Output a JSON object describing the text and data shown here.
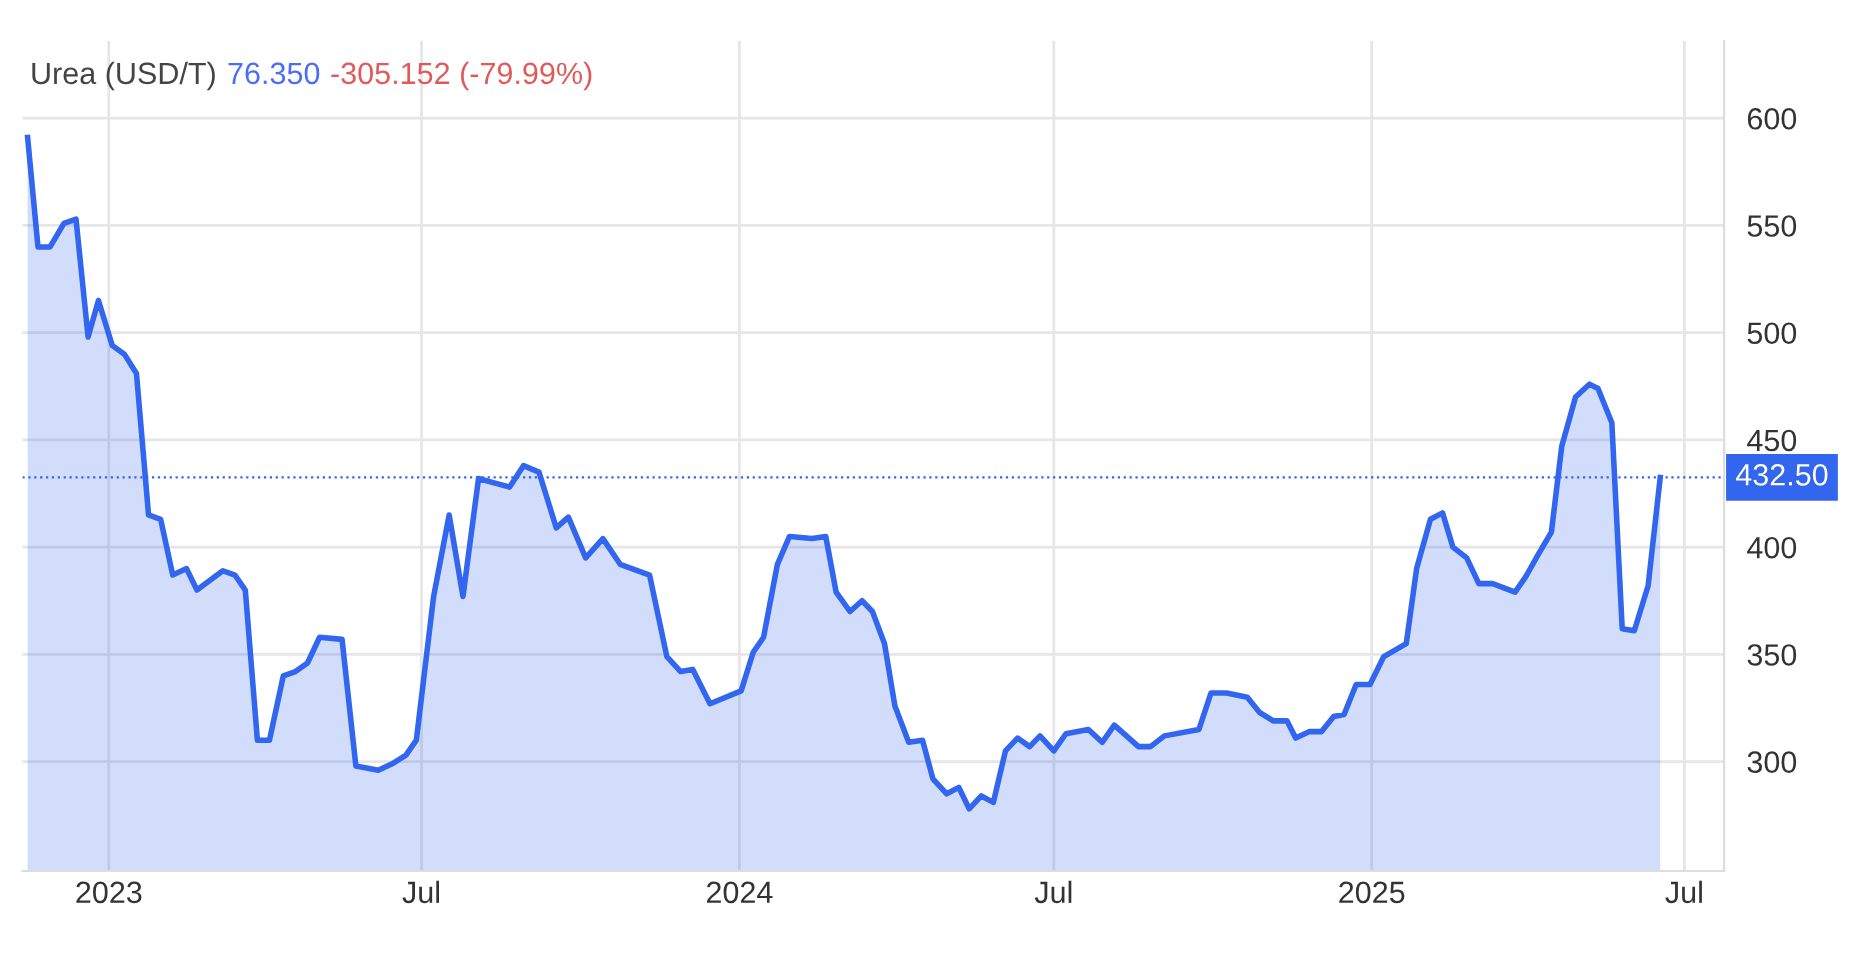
{
  "chart_data": {
    "type": "area",
    "title": "Urea (USD/T)",
    "annotations": [
      "76.350",
      "-305.152 (-79.99%)"
    ],
    "x": [
      "2022-11-15",
      "2022-11-21",
      "2022-11-28",
      "2022-12-06",
      "2022-12-13",
      "2022-12-20",
      "2022-12-26",
      "2023-01-03",
      "2023-01-10",
      "2023-01-17",
      "2023-01-24",
      "2023-01-31",
      "2023-02-07",
      "2023-02-15",
      "2023-02-21",
      "2023-03-08",
      "2023-03-15",
      "2023-03-21",
      "2023-03-28",
      "2023-04-04",
      "2023-04-12",
      "2023-04-19",
      "2023-04-26",
      "2023-05-03",
      "2023-05-16",
      "2023-05-24",
      "2023-06-06",
      "2023-06-14",
      "2023-06-22",
      "2023-06-28",
      "2023-07-08",
      "2023-07-17",
      "2023-07-25",
      "2023-08-03",
      "2023-08-12",
      "2023-08-21",
      "2023-08-29",
      "2023-09-07",
      "2023-09-17",
      "2023-09-24",
      "2023-10-04",
      "2023-10-14",
      "2023-10-24",
      "2023-11-10",
      "2023-11-20",
      "2023-11-28",
      "2023-12-05",
      "2023-12-15",
      "2024-01-02",
      "2024-01-09",
      "2024-01-15",
      "2024-01-23",
      "2024-01-30",
      "2024-02-12",
      "2024-02-20",
      "2024-02-26",
      "2024-03-05",
      "2024-03-12",
      "2024-03-18",
      "2024-03-25",
      "2024-03-31",
      "2024-04-08",
      "2024-04-16",
      "2024-04-22",
      "2024-04-30",
      "2024-05-07",
      "2024-05-13",
      "2024-05-20",
      "2024-05-27",
      "2024-06-03",
      "2024-06-10",
      "2024-06-17",
      "2024-06-23",
      "2024-07-01",
      "2024-07-08",
      "2024-07-21",
      "2024-07-29",
      "2024-08-05",
      "2024-08-19",
      "2024-08-26",
      "2024-09-03",
      "2024-09-23",
      "2024-09-30",
      "2024-10-09",
      "2024-10-21",
      "2024-10-28",
      "2024-11-05",
      "2024-11-13",
      "2024-11-18",
      "2024-11-26",
      "2024-12-03",
      "2024-12-10",
      "2024-12-16",
      "2024-12-23",
      "2024-12-31",
      "2025-01-08",
      "2025-01-21",
      "2025-01-27",
      "2025-02-04",
      "2025-02-11",
      "2025-02-17",
      "2025-02-25",
      "2025-03-04",
      "2025-03-12",
      "2025-03-25",
      "2025-03-31",
      "2025-04-07",
      "2025-04-15",
      "2025-04-21",
      "2025-04-29",
      "2025-05-07",
      "2025-05-12",
      "2025-05-20",
      "2025-05-26",
      "2025-06-02",
      "2025-06-10",
      "2025-06-17"
    ],
    "series": [
      {
        "color": "#3366ee",
        "values": [
          591,
          540,
          540,
          551,
          553,
          498,
          515,
          494,
          490,
          481,
          415,
          413,
          387,
          390,
          380,
          389,
          387,
          380,
          310,
          310,
          340,
          342,
          346,
          358,
          357,
          298,
          296,
          299,
          303,
          310,
          377,
          415,
          377,
          432,
          430,
          428,
          438,
          435,
          409,
          414,
          395,
          404,
          392,
          387,
          349,
          342,
          343,
          327,
          333,
          351,
          358,
          392,
          405,
          404,
          405,
          379,
          370,
          375,
          370,
          355,
          326,
          309,
          310,
          292,
          285,
          288,
          278,
          284,
          281,
          305,
          311,
          307,
          312,
          305,
          313,
          315,
          309,
          317,
          307,
          307,
          312,
          315,
          332,
          332,
          330,
          323,
          319,
          319,
          311,
          314,
          314,
          321,
          322,
          336,
          336,
          349,
          355,
          390,
          413,
          416,
          400,
          395,
          383,
          383,
          379,
          386,
          396,
          407,
          447,
          470,
          476,
          474,
          458,
          362,
          361,
          382,
          432.5
        ]
      }
    ],
    "xlim": [
      "2022-11-12",
      "2025-07-24"
    ],
    "xticks": [
      {
        "value": "2023-01-01",
        "label": "2023"
      },
      {
        "value": "2023-07-01",
        "label": "Jul"
      },
      {
        "value": "2024-01-01",
        "label": "2024"
      },
      {
        "value": "2024-07-01",
        "label": "Jul"
      },
      {
        "value": "2025-01-01",
        "label": "2025"
      },
      {
        "value": "2025-07-01",
        "label": "Jul"
      }
    ],
    "ylim": [
      249,
      636
    ],
    "yticks": [
      300,
      350,
      400,
      450,
      500,
      550,
      600
    ],
    "ref_lines": [
      {
        "axis": "y",
        "value": 432.5,
        "label": "432.50",
        "color": "#3366ee",
        "line_style": "dotted"
      }
    ],
    "grid": true,
    "legend": false
  }
}
